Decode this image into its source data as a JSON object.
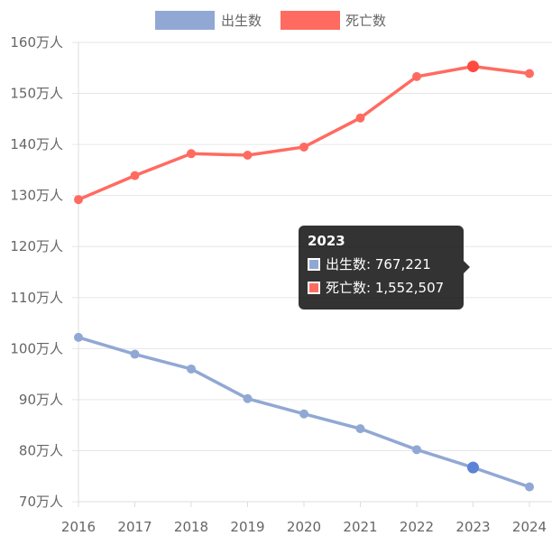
{
  "chart_data": {
    "type": "line",
    "categories": [
      "2016",
      "2017",
      "2018",
      "2019",
      "2020",
      "2021",
      "2022",
      "2023",
      "2024"
    ],
    "series": [
      {
        "name": "出生数",
        "color": "#91a8d4",
        "values": [
          102.2,
          98.9,
          96.0,
          90.2,
          87.2,
          84.3,
          80.2,
          76.7,
          72.9
        ]
      },
      {
        "name": "死亡数",
        "color": "#ff6b61",
        "values": [
          129.2,
          133.9,
          138.2,
          137.9,
          139.5,
          145.2,
          153.3,
          155.3,
          153.9
        ]
      }
    ],
    "ylim": [
      70,
      160
    ],
    "yticks": [
      {
        "value": 160,
        "label": "160万人"
      },
      {
        "value": 150,
        "label": "150万人"
      },
      {
        "value": 140,
        "label": "140万人"
      },
      {
        "value": 130,
        "label": "130万人"
      },
      {
        "value": 120,
        "label": "120万人"
      },
      {
        "value": 110,
        "label": "110万人"
      },
      {
        "value": 100,
        "label": "100万人"
      },
      {
        "value": 90,
        "label": "90万人"
      },
      {
        "value": 80,
        "label": "80万人"
      },
      {
        "value": 70,
        "label": "70万人"
      }
    ],
    "grid": true,
    "legend_position": "top",
    "highlighted_category": "2023"
  },
  "tooltip": {
    "title": "2023",
    "items": [
      {
        "text": "出生数: 767,221",
        "color": "#91a8d4"
      },
      {
        "text": "死亡数: 1,552,507",
        "color": "#ff6b61"
      }
    ]
  }
}
